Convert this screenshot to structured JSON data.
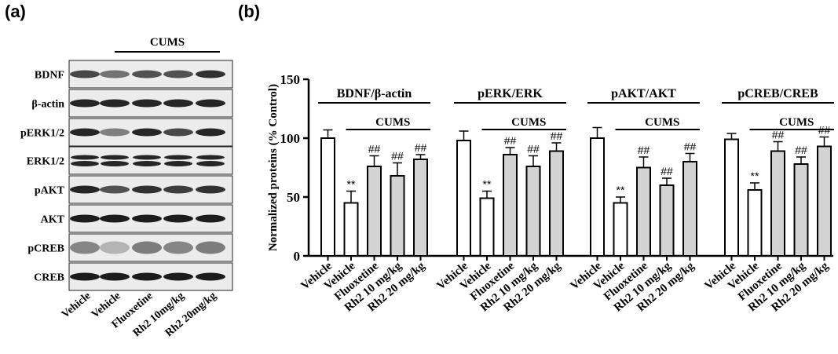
{
  "panel_a": {
    "label": "(a)",
    "cums_label": "CUMS",
    "rows": [
      "BDNF",
      "β-actin",
      "pERK1/2",
      "ERK1/2",
      "pAKT",
      "AKT",
      "pCREB",
      "CREB"
    ],
    "lanes": [
      "Vehicle",
      "Vehicle",
      "Fluoxetine",
      "Rh2 10mg/kg",
      "Rh2 20mg/kg"
    ]
  },
  "panel_b": {
    "label": "(b)"
  },
  "chart_data": {
    "type": "bar",
    "ylabel": "Normalized proteins (% Control)",
    "ylim": [
      0,
      150
    ],
    "yticks": [
      0,
      50,
      100,
      150
    ],
    "categories": [
      "Vehicle",
      "Vehicle",
      "Fluoxetine",
      "Rh2 10 mg/kg",
      "Rh2 20 mg/kg"
    ],
    "cums_label": "CUMS",
    "groups": [
      {
        "title": "BDNF/β-actin",
        "values": [
          100,
          45,
          76,
          68,
          82
        ],
        "errors": [
          7,
          10,
          9,
          11,
          4
        ],
        "marks": [
          "",
          "**",
          "##",
          "##",
          "##"
        ]
      },
      {
        "title": "pERK/ERK",
        "values": [
          98,
          49,
          86,
          76,
          89
        ],
        "errors": [
          8,
          6,
          6,
          9,
          7
        ],
        "marks": [
          "",
          "**",
          "##",
          "##",
          "##"
        ]
      },
      {
        "title": "pAKT/AKT",
        "values": [
          100,
          45,
          75,
          60,
          80
        ],
        "errors": [
          9,
          5,
          9,
          6,
          7
        ],
        "marks": [
          "",
          "**",
          "##",
          "##",
          "##"
        ]
      },
      {
        "title": "pCREB/CREB",
        "values": [
          99,
          56,
          89,
          78,
          93
        ],
        "errors": [
          5,
          6,
          8,
          6,
          8
        ],
        "marks": [
          "",
          "**",
          "##",
          "##",
          "##"
        ]
      }
    ],
    "bar_colors": {
      "control": "#ffffff",
      "vehicle_cums": "#ffffff",
      "treatment": "#d3d3d3"
    }
  }
}
